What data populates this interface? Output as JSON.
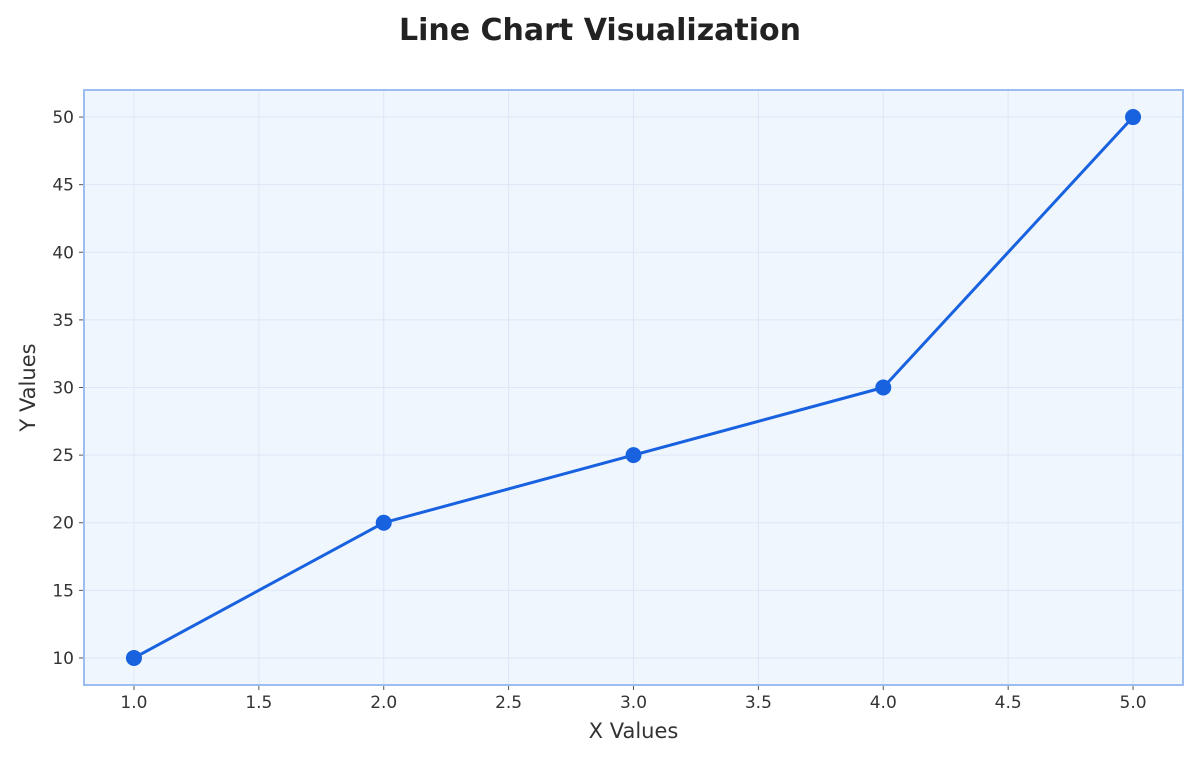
{
  "chart_data": {
    "type": "line",
    "title": "Line Chart Visualization",
    "xlabel": "X Values",
    "ylabel": "Y Values",
    "x": [
      1.0,
      2.0,
      3.0,
      4.0,
      5.0
    ],
    "series": [
      {
        "values": [
          10,
          20,
          25,
          30,
          50
        ]
      }
    ],
    "xlim": [
      0.8,
      5.2
    ],
    "ylim": [
      8,
      52
    ],
    "x_ticks": [
      "1.0",
      "1.5",
      "2.0",
      "2.5",
      "3.0",
      "3.5",
      "4.0",
      "4.5",
      "5.0"
    ],
    "y_ticks": [
      "10",
      "15",
      "20",
      "25",
      "30",
      "35",
      "40",
      "45",
      "50"
    ],
    "grid": true,
    "legend": "none",
    "colors": {
      "line": "#1862e0",
      "marker": "#1862e0",
      "plot_background": "#f0f6fd",
      "plot_border": "#9bbdf0",
      "grid": "#dde7f7"
    }
  }
}
